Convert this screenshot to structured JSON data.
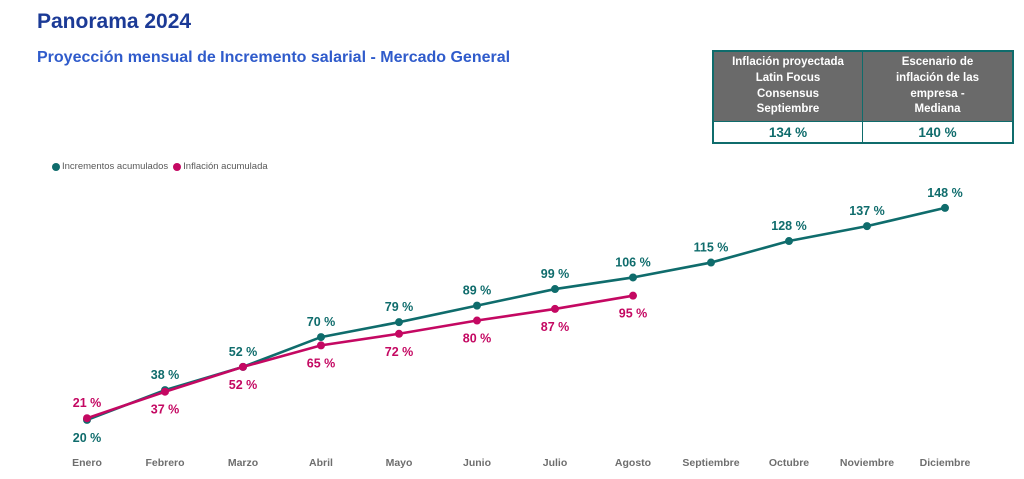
{
  "page": {
    "title": "Panorama 2024",
    "subtitle": "Proyección mensual de Incremento salarial - Mercado General"
  },
  "summary_table": {
    "columns": [
      {
        "header": "Inflación proyectada\nLatin Focus\nConsensus\nSeptiembre",
        "value": "134 %"
      },
      {
        "header": "Escenario de\ninflación de las\nempresa -\nMediana",
        "value": "140 %"
      }
    ]
  },
  "colors": {
    "accent_teal": "#0f6c6c",
    "accent_magenta": "#c40862",
    "title_blue": "#1b3a96",
    "subtitle_blue": "#2f5bcb",
    "axis_gray": "#6e6e6e",
    "table_header_bg": "#6a6a6a"
  },
  "chart_data": {
    "type": "line",
    "title": "Proyección mensual de Incremento salarial - Mercado General",
    "categories": [
      "Enero",
      "Febrero",
      "Marzo",
      "Abril",
      "Mayo",
      "Junio",
      "Julio",
      "Agosto",
      "Septiembre",
      "Octubre",
      "Noviembre",
      "Diciembre"
    ],
    "series": [
      {
        "name": "Incrementos acumulados",
        "color_key": "accent_teal",
        "values": [
          20,
          38,
          52,
          70,
          79,
          89,
          99,
          106,
          115,
          128,
          137,
          148
        ],
        "label_position": "above",
        "label_overrides": {
          "0": "below"
        }
      },
      {
        "name": "Inflación acumulada",
        "color_key": "accent_magenta",
        "values": [
          21,
          37,
          52,
          65,
          72,
          80,
          87,
          95
        ],
        "label_position": "below",
        "label_overrides": {
          "0": "above"
        }
      }
    ],
    "label_suffix": " %",
    "xlabel": "",
    "ylabel": "",
    "ylim": [
      10,
      160
    ],
    "grid": false,
    "legend_position": "top-left",
    "data_labels": true
  }
}
